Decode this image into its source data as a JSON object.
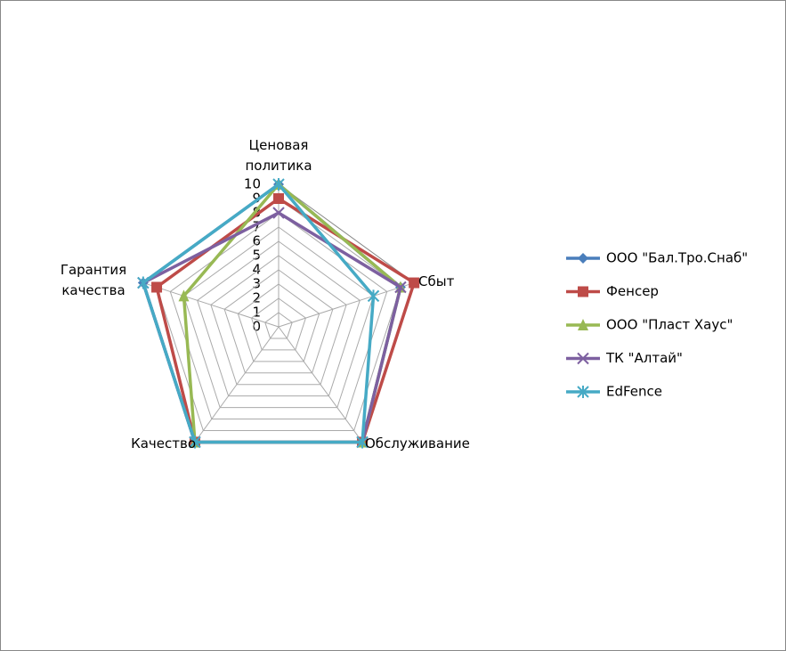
{
  "chart_data": {
    "type": "radar",
    "categories": [
      "Ценовая политика",
      "Сбыт",
      "Обслуживание",
      "Качество",
      "Гарантия качества"
    ],
    "series": [
      {
        "name": "ООО \"Бал.Тро.Снаб\"",
        "color": "#4a7ebb",
        "marker": "diamond",
        "values": [
          10,
          9,
          10,
          10,
          10
        ]
      },
      {
        "name": "Фенсер",
        "color": "#be4b48",
        "marker": "square",
        "values": [
          9,
          10,
          10,
          10,
          9
        ]
      },
      {
        "name": "ООО \"Пласт Хаус\"",
        "color": "#98b954",
        "marker": "triangle",
        "values": [
          10,
          9,
          10,
          10,
          7
        ]
      },
      {
        "name": "ТК \"Алтай\"",
        "color": "#7d60a0",
        "marker": "x",
        "values": [
          8,
          9,
          10,
          10,
          10
        ]
      },
      {
        "name": "EdFence",
        "color": "#46aac5",
        "marker": "star",
        "values": [
          10,
          7,
          10,
          10,
          10
        ]
      }
    ],
    "ylim": [
      0,
      10
    ],
    "yticks": [
      0,
      1,
      2,
      3,
      4,
      5,
      6,
      7,
      8,
      9,
      10
    ],
    "grid": true,
    "legend": "right"
  }
}
